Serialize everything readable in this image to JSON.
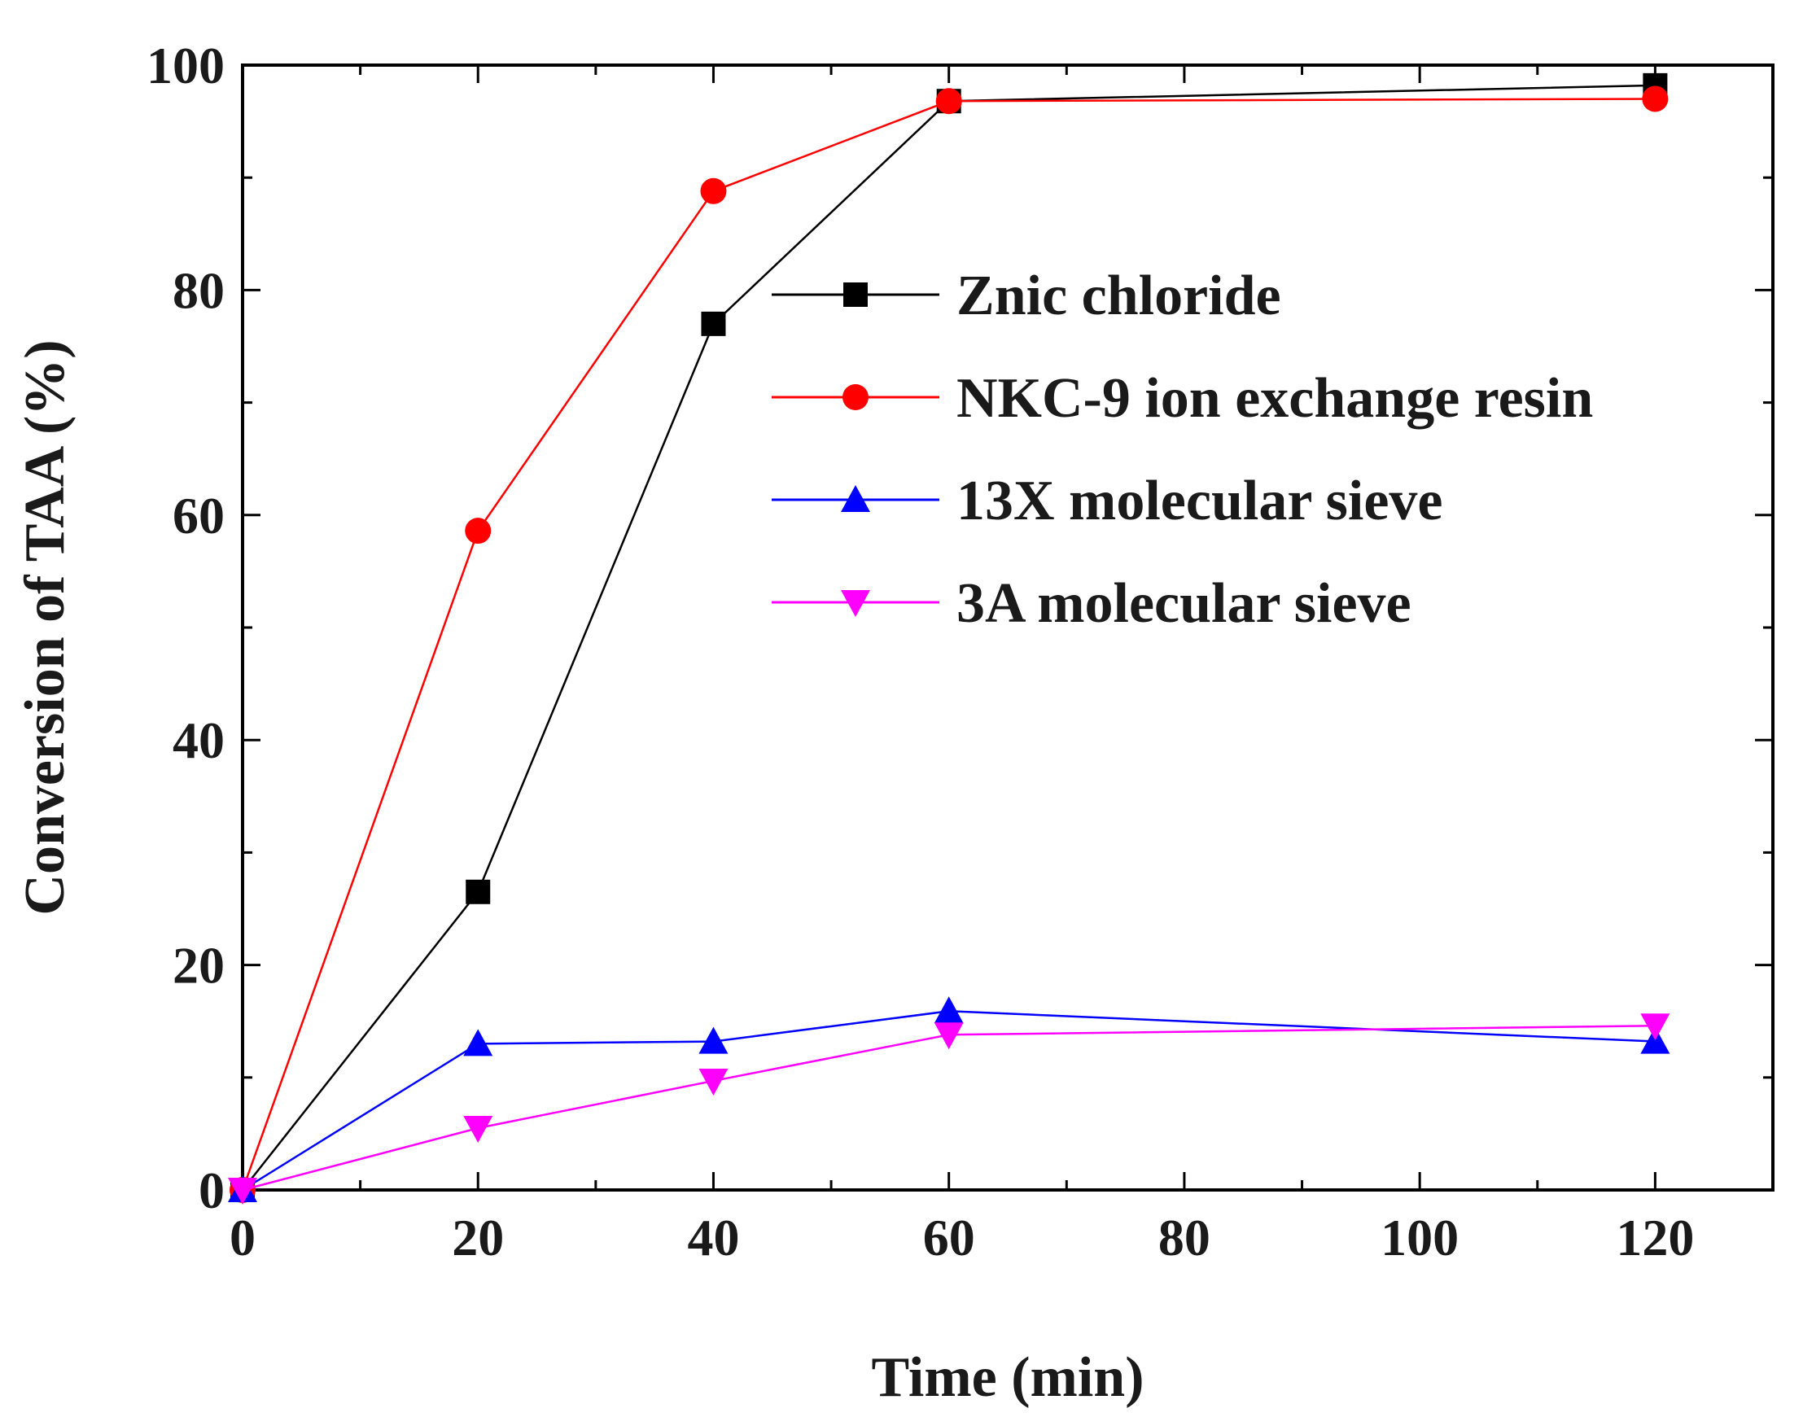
{
  "chart_data": {
    "type": "line",
    "title": "",
    "xlabel": "Time (min)",
    "ylabel": "Conversion of TAA (%)",
    "xlim": [
      0,
      130
    ],
    "ylim": [
      0,
      100
    ],
    "xticks": [
      0,
      20,
      40,
      60,
      80,
      100,
      120
    ],
    "yticks": [
      0,
      20,
      40,
      60,
      80,
      100
    ],
    "grid": false,
    "legend_position": "center-right",
    "x": [
      0,
      20,
      40,
      60,
      120
    ],
    "series": [
      {
        "name": "Znic chloride",
        "color": "#000000",
        "marker": "square",
        "values": [
          0,
          26.5,
          77,
          96.8,
          98.2
        ]
      },
      {
        "name": "NKC-9 ion exchange resin",
        "color": "#ff0000",
        "marker": "circle",
        "values": [
          0,
          58.6,
          88.8,
          96.8,
          97.0
        ]
      },
      {
        "name": "13X molecular sieve",
        "color": "#0000ff",
        "marker": "triangle-up",
        "values": [
          0,
          13.0,
          13.2,
          15.9,
          13.2
        ]
      },
      {
        "name": "3A molecular sieve",
        "color": "#ff00ff",
        "marker": "triangle-down",
        "values": [
          0,
          5.5,
          9.7,
          13.8,
          14.6
        ]
      }
    ]
  }
}
